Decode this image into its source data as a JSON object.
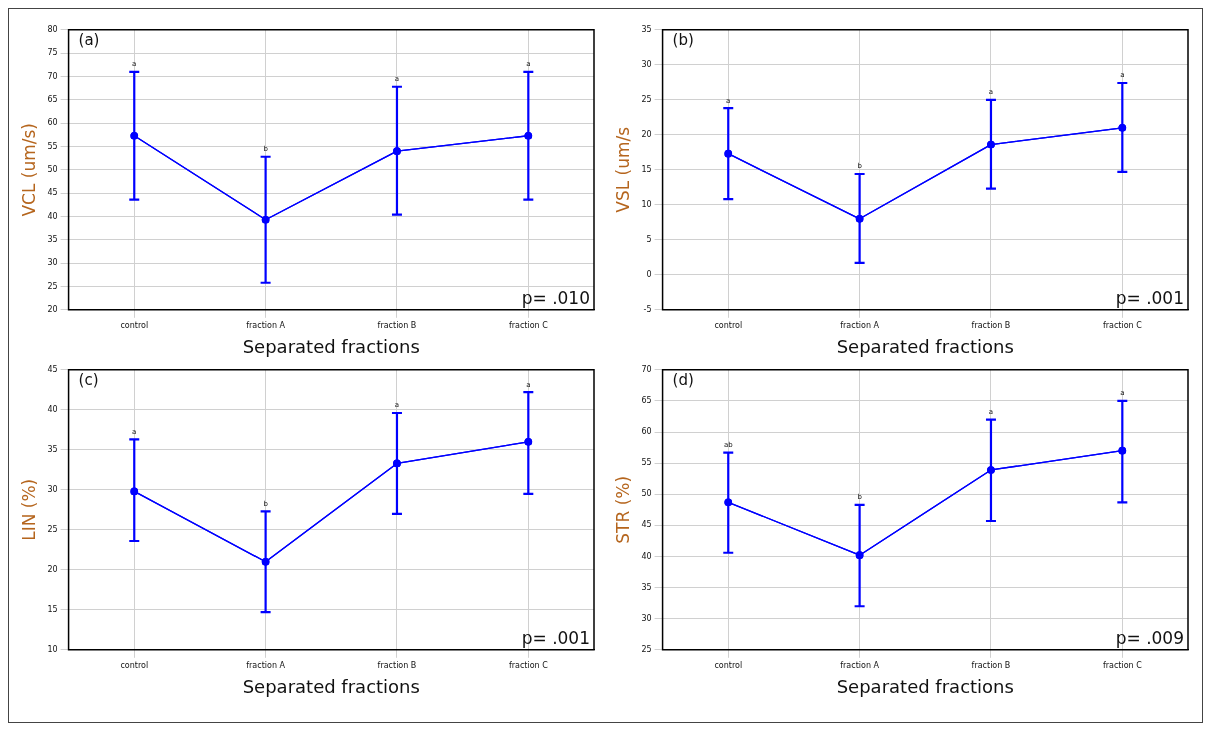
{
  "chart_data": [
    {
      "type": "line",
      "title": "(a)",
      "xlabel": "Separated fractions",
      "ylabel": "VCL (um/s)",
      "categories": [
        "control",
        "fraction A",
        "fraction B",
        "fraction C"
      ],
      "series": [
        {
          "color": "#0000ff",
          "values": [
            57.3,
            39.3,
            54,
            57.3
          ],
          "errors": [
            [
              43.6,
              71
            ],
            [
              25.8,
              52.8
            ],
            [
              40.4,
              67.8
            ],
            [
              43.6,
              71
            ]
          ]
        }
      ],
      "ylim": [
        20,
        80
      ],
      "yticks": [
        20,
        25,
        30,
        35,
        40,
        45,
        50,
        55,
        60,
        65,
        70,
        75,
        80
      ],
      "grid": true,
      "legend": false,
      "marker": "circle",
      "line_style": "solid",
      "annotations": [
        "p= .010",
        {
          "text": "a",
          "x": "control",
          "y": 71
        },
        {
          "text": "b",
          "x": "fraction A",
          "y": 52.8
        },
        {
          "text": "a",
          "x": "fraction B",
          "y": 67.8
        },
        {
          "text": "a",
          "x": "fraction C",
          "y": 71
        }
      ]
    },
    {
      "type": "line",
      "title": "(b)",
      "xlabel": "Separated fractions",
      "ylabel": "VSL (um/s",
      "categories": [
        "control",
        "fraction A",
        "fraction B",
        "fraction C"
      ],
      "series": [
        {
          "color": "#0000ff",
          "values": [
            17.3,
            8,
            18.6,
            21
          ],
          "errors": [
            [
              10.8,
              23.8
            ],
            [
              1.7,
              14.4
            ],
            [
              12.3,
              25
            ],
            [
              14.7,
              27.4
            ]
          ]
        }
      ],
      "ylim": [
        -5,
        35
      ],
      "yticks": [
        -5,
        0,
        5,
        10,
        15,
        20,
        25,
        30,
        35
      ],
      "grid": true,
      "legend": false,
      "marker": "circle",
      "line_style": "solid",
      "annotations": [
        "p= .001",
        {
          "text": "a",
          "x": "control",
          "y": 23.8
        },
        {
          "text": "b",
          "x": "fraction A",
          "y": 14.4
        },
        {
          "text": "a",
          "x": "fraction B",
          "y": 25
        },
        {
          "text": "a",
          "x": "fraction C",
          "y": 27.4
        }
      ]
    },
    {
      "type": "line",
      "title": "(c)",
      "xlabel": "Separated fractions",
      "ylabel": "LIN (%)",
      "categories": [
        "control",
        "fraction A",
        "fraction B",
        "fraction C"
      ],
      "series": [
        {
          "color": "#0000ff",
          "values": [
            29.8,
            21,
            33.3,
            36
          ],
          "errors": [
            [
              23.6,
              36.3
            ],
            [
              14.7,
              27.3
            ],
            [
              27,
              39.6
            ],
            [
              29.5,
              42.2
            ]
          ]
        }
      ],
      "ylim": [
        10,
        45
      ],
      "yticks": [
        10,
        15,
        20,
        25,
        30,
        35,
        40,
        45
      ],
      "grid": true,
      "legend": false,
      "marker": "circle",
      "line_style": "solid",
      "annotations": [
        "p= .001",
        {
          "text": "a",
          "x": "control",
          "y": 36.3
        },
        {
          "text": "b",
          "x": "fraction A",
          "y": 27.3
        },
        {
          "text": "a",
          "x": "fraction B",
          "y": 39.6
        },
        {
          "text": "a",
          "x": "fraction C",
          "y": 42.2
        }
      ]
    },
    {
      "type": "line",
      "title": "(d)",
      "xlabel": "Separated fractions",
      "ylabel": "STR (%)",
      "categories": [
        "control",
        "fraction A",
        "fraction B",
        "fraction C"
      ],
      "series": [
        {
          "color": "#0000ff",
          "values": [
            48.7,
            40.2,
            53.9,
            57
          ],
          "errors": [
            [
              40.6,
              56.7
            ],
            [
              32,
              48.3
            ],
            [
              45.7,
              62
            ],
            [
              48.7,
              65
            ]
          ]
        }
      ],
      "ylim": [
        25,
        70
      ],
      "yticks": [
        25,
        30,
        35,
        40,
        45,
        50,
        55,
        60,
        65,
        70
      ],
      "grid": true,
      "legend": false,
      "marker": "circle",
      "line_style": "solid",
      "annotations": [
        "p= .009",
        {
          "text": "ab",
          "x": "control",
          "y": 56.7
        },
        {
          "text": "b",
          "x": "fraction A",
          "y": 48.3
        },
        {
          "text": "a",
          "x": "fraction B",
          "y": 62
        },
        {
          "text": "a",
          "x": "fraction C",
          "y": 65
        }
      ]
    }
  ]
}
